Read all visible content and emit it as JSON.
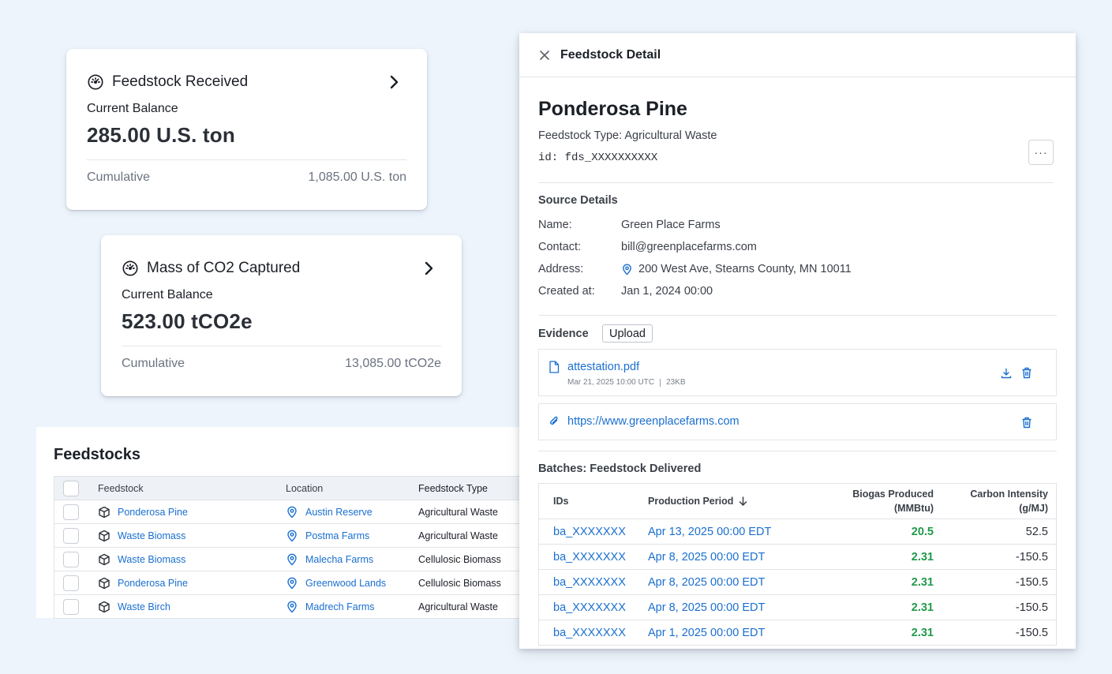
{
  "cards": [
    {
      "title": "Feedstock Received",
      "balance_label": "Current Balance",
      "balance_value": "285.00 U.S. ton",
      "cumulative_label": "Cumulative",
      "cumulative_value": "1,085.00 U.S. ton"
    },
    {
      "title": "Mass of CO2 Captured",
      "balance_label": "Current Balance",
      "balance_value": "523.00 tCO2e",
      "cumulative_label": "Cumulative",
      "cumulative_value": "13,085.00 tCO2e"
    }
  ],
  "feedstocks": {
    "title": "Feedstocks",
    "columns": [
      "Feedstock",
      "Location",
      "Feedstock Type"
    ],
    "rows": [
      {
        "feedstock": "Ponderosa Pine",
        "location": "Austin Reserve",
        "type": "Agricultural Waste"
      },
      {
        "feedstock": "Waste Biomass",
        "location": "Postma Farms",
        "type": "Agricultural Waste"
      },
      {
        "feedstock": "Waste Biomass",
        "location": "Malecha Farms",
        "type": "Cellulosic Biomass"
      },
      {
        "feedstock": "Ponderosa Pine",
        "location": "Greenwood Lands",
        "type": "Cellulosic Biomass"
      },
      {
        "feedstock": "Waste Birch",
        "location": "Madrech Farms",
        "type": "Agricultural Waste"
      }
    ]
  },
  "detail": {
    "header": "Feedstock Detail",
    "name": "Ponderosa Pine",
    "type_line": "Feedstock Type: Agricultural Waste",
    "id_line": "id: fds_XXXXXXXXXX",
    "more_label": "···",
    "source": {
      "title": "Source Details",
      "name_label": "Name:",
      "name_value": "Green Place Farms",
      "contact_label": "Contact:",
      "contact_value": "bill@greenplacefarms.com",
      "address_label": "Address:",
      "address_value": "200 West Ave, Stearns County, MN 10011",
      "created_label": "Created at:",
      "created_value": "Jan 1, 2024 00:00"
    },
    "evidence": {
      "title": "Evidence",
      "upload_label": "Upload",
      "file_name": "attestation.pdf",
      "file_date": "Mar 21, 2025 10:00 UTC",
      "file_size": "23KB",
      "link_url": "https://www.greenplacefarms.com"
    },
    "batches": {
      "title": "Batches: Feedstock Delivered",
      "col_ids": "IDs",
      "col_period": "Production Period",
      "col_biogas_1": "Biogas Produced",
      "col_biogas_2": "(MMBtu)",
      "col_ci_1": "Carbon Intensity",
      "col_ci_2": "(g/MJ)",
      "rows": [
        {
          "id": "ba_XXXXXXX",
          "period": "Apr 13, 2025 00:00 EDT",
          "biogas": "20.5",
          "ci": "52.5"
        },
        {
          "id": "ba_XXXXXXX",
          "period": "Apr 8, 2025 00:00 EDT",
          "biogas": "2.31",
          "ci": "-150.5"
        },
        {
          "id": "ba_XXXXXXX",
          "period": "Apr 8, 2025 00:00 EDT",
          "biogas": "2.31",
          "ci": "-150.5"
        },
        {
          "id": "ba_XXXXXXX",
          "period": "Apr 8, 2025 00:00 EDT",
          "biogas": "2.31",
          "ci": "-150.5"
        },
        {
          "id": "ba_XXXXXXX",
          "period": "Apr 1, 2025 00:00 EDT",
          "biogas": "2.31",
          "ci": "-150.5"
        }
      ]
    }
  },
  "colors": {
    "background": "#edf4fc",
    "link": "#1a6fd0",
    "positive": "#1f9a4a"
  }
}
